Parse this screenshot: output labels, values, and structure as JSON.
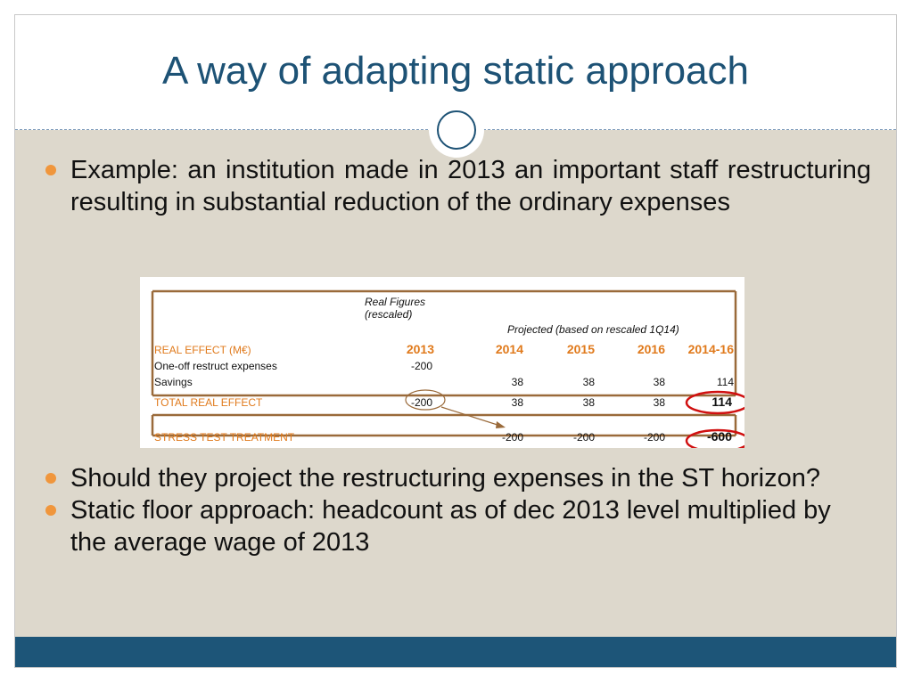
{
  "slide": {
    "title": "A way of adapting static approach",
    "bullets_top": [
      "Example: an institution made in 2013 an important staff restructuring resulting in substantial reduction of the ordinary expenses"
    ],
    "bullets_bottom": [
      "Should they project the restructuring expenses in the ST horizon?",
      "Static floor approach: headcount as of dec 2013 level multiplied by the average wage of 2013"
    ]
  },
  "table": {
    "header_real_line1": "Real Figures",
    "header_real_line2": "(rescaled)",
    "header_projected": "Projected (based on rescaled 1Q14)",
    "section_label": "REAL EFFECT (M€)",
    "years": [
      "2013",
      "2014",
      "2015",
      "2016",
      "2014-16"
    ],
    "rows": [
      {
        "label": "One-off restruct expenses",
        "values": [
          "-200",
          "",
          "",
          "",
          ""
        ]
      },
      {
        "label": "Savings",
        "values": [
          "",
          "38",
          "38",
          "38",
          "114"
        ]
      }
    ],
    "total": {
      "label": "TOTAL REAL EFFECT",
      "values": [
        "-200",
        "38",
        "38",
        "38",
        "114"
      ]
    },
    "stress": {
      "label": "STRESS TEST TREATMENT",
      "values": [
        "",
        "-200",
        "-200",
        "-200",
        "-600"
      ]
    }
  },
  "colors": {
    "title": "#1d5275",
    "bullet": "#f0963c",
    "table_orange": "#e07a1c",
    "table_rule": "#9a6a3a",
    "highlight": "#d01010",
    "footer": "#1d5578"
  }
}
